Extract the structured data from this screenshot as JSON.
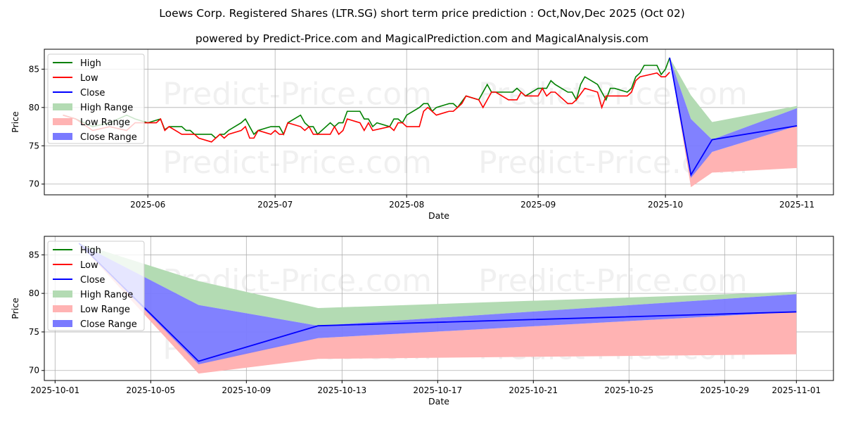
{
  "title": "Loews Corp. Registered Shares (LTR.SG) short term price prediction : Oct,Nov,Dec 2025 (Oct 02)",
  "subtitle": "powered by Predict-Price.com and MagicalPrediction.com and MagicalAnalysis.com",
  "watermark": "Predict-Price.com",
  "colors": {
    "high": "#008000",
    "low": "#ff0000",
    "close": "#0000ff",
    "high_range": "#b3dbb3",
    "low_range": "#ffb3b3",
    "close_range": "#7a7aff"
  },
  "legend": [
    "High",
    "Low",
    "Close",
    "High Range",
    "Low Range",
    "Close Range"
  ],
  "chart_data": [
    {
      "type": "line",
      "xlabel": "Date",
      "ylabel": "Price",
      "xlim": [
        "2025-05-08",
        "2025-11-09"
      ],
      "ylim": [
        68.6,
        87.6
      ],
      "xticks": [
        "2025-06",
        "2025-07",
        "2025-08",
        "2025-09",
        "2025-10",
        "2025-11"
      ],
      "yticks": [
        70,
        75,
        80,
        85
      ],
      "grid": true,
      "legend_position": "top-left",
      "history": {
        "high": [
          [
            "2025-05-12",
            79.0
          ],
          [
            "2025-05-15",
            78.5
          ],
          [
            "2025-05-19",
            77.5
          ],
          [
            "2025-05-23",
            78.0
          ],
          [
            "2025-05-27",
            79.0
          ],
          [
            "2025-05-29",
            78.5
          ],
          [
            "2025-06-01",
            78.0
          ],
          [
            "2025-06-04",
            78.5
          ],
          [
            "2025-06-05",
            77.1
          ],
          [
            "2025-06-06",
            77.5
          ],
          [
            "2025-06-09",
            77.5
          ],
          [
            "2025-06-10",
            77.0
          ],
          [
            "2025-06-11",
            77.0
          ],
          [
            "2025-06-12",
            76.5
          ],
          [
            "2025-06-16",
            76.5
          ],
          [
            "2025-06-17",
            76.0
          ],
          [
            "2025-06-18",
            76.5
          ],
          [
            "2025-06-19",
            76.5
          ],
          [
            "2025-06-20",
            77.0
          ],
          [
            "2025-06-23",
            78.0
          ],
          [
            "2025-06-24",
            78.5
          ],
          [
            "2025-06-26",
            76.5
          ],
          [
            "2025-06-27",
            77.0
          ],
          [
            "2025-06-30",
            77.5
          ],
          [
            "2025-07-02",
            77.5
          ],
          [
            "2025-07-03",
            76.5
          ],
          [
            "2025-07-04",
            78.0
          ],
          [
            "2025-07-07",
            79.0
          ],
          [
            "2025-07-08",
            78.0
          ],
          [
            "2025-07-09",
            77.5
          ],
          [
            "2025-07-10",
            77.5
          ],
          [
            "2025-07-11",
            76.5
          ],
          [
            "2025-07-14",
            78.0
          ],
          [
            "2025-07-15",
            77.5
          ],
          [
            "2025-07-16",
            78.0
          ],
          [
            "2025-07-17",
            78.0
          ],
          [
            "2025-07-18",
            79.5
          ],
          [
            "2025-07-21",
            79.5
          ],
          [
            "2025-07-22",
            78.5
          ],
          [
            "2025-07-23",
            78.5
          ],
          [
            "2025-07-24",
            77.5
          ],
          [
            "2025-07-25",
            78.0
          ],
          [
            "2025-07-28",
            77.5
          ],
          [
            "2025-07-29",
            78.5
          ],
          [
            "2025-07-30",
            78.5
          ],
          [
            "2025-07-31",
            78.0
          ],
          [
            "2025-08-01",
            79.0
          ],
          [
            "2025-08-04",
            80.0
          ],
          [
            "2025-08-05",
            80.5
          ],
          [
            "2025-08-06",
            80.5
          ],
          [
            "2025-08-07",
            79.5
          ],
          [
            "2025-08-08",
            80.0
          ],
          [
            "2025-08-11",
            80.5
          ],
          [
            "2025-08-12",
            80.5
          ],
          [
            "2025-08-13",
            80.0
          ],
          [
            "2025-08-15",
            81.5
          ],
          [
            "2025-08-18",
            81.0
          ],
          [
            "2025-08-20",
            83.0
          ],
          [
            "2025-08-21",
            82.0
          ],
          [
            "2025-08-26",
            82.0
          ],
          [
            "2025-08-27",
            82.5
          ],
          [
            "2025-08-29",
            81.5
          ],
          [
            "2025-09-01",
            82.5
          ],
          [
            "2025-09-03",
            82.5
          ],
          [
            "2025-09-04",
            83.5
          ],
          [
            "2025-09-05",
            83.0
          ],
          [
            "2025-09-08",
            82.0
          ],
          [
            "2025-09-09",
            82.0
          ],
          [
            "2025-09-10",
            81.0
          ],
          [
            "2025-09-11",
            83.0
          ],
          [
            "2025-09-12",
            84.0
          ],
          [
            "2025-09-15",
            83.0
          ],
          [
            "2025-09-17",
            81.0
          ],
          [
            "2025-09-18",
            82.5
          ],
          [
            "2025-09-19",
            82.5
          ],
          [
            "2025-09-22",
            82.0
          ],
          [
            "2025-09-23",
            82.5
          ],
          [
            "2025-09-24",
            84.0
          ],
          [
            "2025-09-25",
            84.5
          ],
          [
            "2025-09-26",
            85.5
          ],
          [
            "2025-09-29",
            85.5
          ],
          [
            "2025-09-30",
            84.3
          ],
          [
            "2025-10-01",
            85.0
          ],
          [
            "2025-10-02",
            86.5
          ]
        ],
        "low": [
          [
            "2025-05-12",
            79.0
          ],
          [
            "2025-05-15",
            78.5
          ],
          [
            "2025-05-19",
            77.0
          ],
          [
            "2025-05-23",
            77.5
          ],
          [
            "2025-05-27",
            77.0
          ],
          [
            "2025-05-29",
            78.0
          ],
          [
            "2025-06-01",
            78.0
          ],
          [
            "2025-06-03",
            78.0
          ],
          [
            "2025-06-04",
            78.5
          ],
          [
            "2025-06-05",
            77.0
          ],
          [
            "2025-06-06",
            77.5
          ],
          [
            "2025-06-09",
            76.5
          ],
          [
            "2025-06-12",
            76.5
          ],
          [
            "2025-06-13",
            76.0
          ],
          [
            "2025-06-16",
            75.5
          ],
          [
            "2025-06-18",
            76.5
          ],
          [
            "2025-06-19",
            76.0
          ],
          [
            "2025-06-20",
            76.5
          ],
          [
            "2025-06-23",
            77.0
          ],
          [
            "2025-06-24",
            77.5
          ],
          [
            "2025-06-25",
            76.0
          ],
          [
            "2025-06-26",
            76.0
          ],
          [
            "2025-06-27",
            77.0
          ],
          [
            "2025-06-30",
            76.5
          ],
          [
            "2025-07-01",
            77.0
          ],
          [
            "2025-07-02",
            76.5
          ],
          [
            "2025-07-03",
            76.5
          ],
          [
            "2025-07-04",
            78.0
          ],
          [
            "2025-07-07",
            77.5
          ],
          [
            "2025-07-08",
            77.0
          ],
          [
            "2025-07-09",
            77.5
          ],
          [
            "2025-07-10",
            76.5
          ],
          [
            "2025-07-14",
            76.5
          ],
          [
            "2025-07-15",
            77.5
          ],
          [
            "2025-07-16",
            76.5
          ],
          [
            "2025-07-17",
            77.0
          ],
          [
            "2025-07-18",
            78.5
          ],
          [
            "2025-07-21",
            78.0
          ],
          [
            "2025-07-22",
            77.0
          ],
          [
            "2025-07-23",
            78.0
          ],
          [
            "2025-07-24",
            77.0
          ],
          [
            "2025-07-28",
            77.5
          ],
          [
            "2025-07-29",
            77.0
          ],
          [
            "2025-07-30",
            78.0
          ],
          [
            "2025-07-31",
            78.0
          ],
          [
            "2025-08-01",
            77.5
          ],
          [
            "2025-08-04",
            77.5
          ],
          [
            "2025-08-05",
            79.5
          ],
          [
            "2025-08-06",
            80.0
          ],
          [
            "2025-08-08",
            79.0
          ],
          [
            "2025-08-11",
            79.5
          ],
          [
            "2025-08-12",
            79.5
          ],
          [
            "2025-08-14",
            80.5
          ],
          [
            "2025-08-15",
            81.5
          ],
          [
            "2025-08-18",
            81.0
          ],
          [
            "2025-08-19",
            80.0
          ],
          [
            "2025-08-21",
            82.0
          ],
          [
            "2025-08-22",
            82.0
          ],
          [
            "2025-08-25",
            81.0
          ],
          [
            "2025-08-27",
            81.0
          ],
          [
            "2025-08-28",
            82.0
          ],
          [
            "2025-08-29",
            81.5
          ],
          [
            "2025-09-01",
            81.5
          ],
          [
            "2025-09-02",
            82.5
          ],
          [
            "2025-09-03",
            81.5
          ],
          [
            "2025-09-04",
            82.0
          ],
          [
            "2025-09-05",
            82.0
          ],
          [
            "2025-09-08",
            80.5
          ],
          [
            "2025-09-09",
            80.5
          ],
          [
            "2025-09-10",
            81.0
          ],
          [
            "2025-09-12",
            82.5
          ],
          [
            "2025-09-15",
            82.0
          ],
          [
            "2025-09-16",
            80.0
          ],
          [
            "2025-09-17",
            81.5
          ],
          [
            "2025-09-19",
            81.5
          ],
          [
            "2025-09-22",
            81.5
          ],
          [
            "2025-09-23",
            82.0
          ],
          [
            "2025-09-24",
            83.5
          ],
          [
            "2025-09-25",
            84.0
          ],
          [
            "2025-09-29",
            84.5
          ],
          [
            "2025-09-30",
            84.0
          ],
          [
            "2025-10-01",
            84.0
          ],
          [
            "2025-10-02",
            84.6
          ]
        ]
      }
    },
    {
      "type": "line",
      "xlabel": "Date",
      "ylabel": "Price",
      "xlim": [
        "2025-09-30",
        "2025-11-02"
      ],
      "ylim": [
        68.7,
        87.4
      ],
      "xticks": [
        "2025-10-01",
        "2025-10-05",
        "2025-10-09",
        "2025-10-13",
        "2025-10-17",
        "2025-10-21",
        "2025-10-25",
        "2025-10-29",
        "2025-11-01"
      ],
      "yticks": [
        70,
        75,
        80,
        85
      ],
      "grid": true,
      "legend_position": "top-left"
    }
  ],
  "forecast": {
    "dates": [
      "2025-10-02",
      "2025-10-07",
      "2025-10-12",
      "2025-11-01"
    ],
    "close": [
      86.5,
      71.2,
      75.8,
      77.6
    ],
    "high_range": {
      "upper": [
        86.5,
        81.6,
        78.1,
        80.2
      ],
      "lower": [
        86.5,
        78.5,
        75.8,
        79.9
      ]
    },
    "close_range": {
      "upper": [
        86.5,
        78.5,
        75.8,
        79.9
      ],
      "lower": [
        86.5,
        70.8,
        74.2,
        77.6
      ]
    },
    "low_range": {
      "upper": [
        86.5,
        71.2,
        74.2,
        77.6
      ],
      "lower": [
        86.5,
        69.6,
        71.5,
        72.1
      ]
    }
  }
}
